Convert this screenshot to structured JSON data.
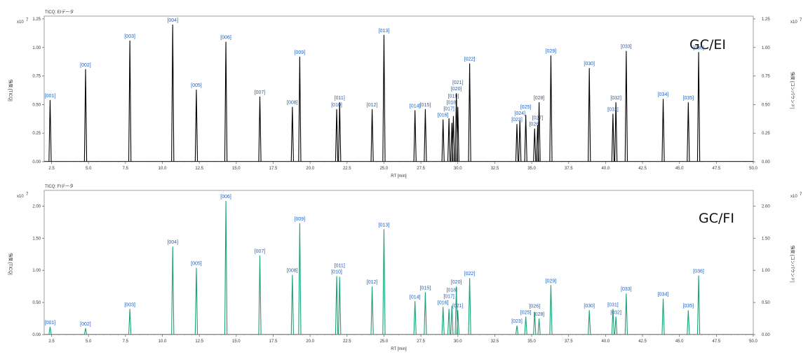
{
  "panels": [
    {
      "id": "ei",
      "title_label": "TICQ: EIデータ",
      "big_label": "GC/EI",
      "y_left_label": "強度 [TICQ]",
      "y_right_label": "強度 [コンパウンド]",
      "x_label": "RT [min]",
      "exponent": "x10",
      "exponent_sup": "7",
      "y_ticks": [
        "0.00",
        "0.25",
        "0.50",
        "0.75",
        "1.00",
        "1.25"
      ],
      "color": "#000000"
    },
    {
      "id": "fi",
      "title_label": "TICQ: FIデータ",
      "big_label": "GC/FI",
      "y_left_label": "強度 [TICQ]",
      "y_right_label": "強度 [コンパウンド]",
      "x_label": "RT [min]",
      "exponent": "x10",
      "exponent_sup": "7",
      "y_ticks": [
        "0.00",
        "0.50",
        "1.00",
        "1.50",
        "2.00"
      ],
      "color": "#1aa37a"
    }
  ],
  "x_ticks": [
    "2.5",
    "5.0",
    "7.5",
    "10.0",
    "12.5",
    "15.0",
    "17.5",
    "20.0",
    "22.5",
    "25.0",
    "27.5",
    "30.0",
    "32.5",
    "35.0",
    "37.5",
    "40.0",
    "42.5",
    "45.0",
    "47.5",
    "50.0"
  ],
  "chart_data": [
    {
      "type": "line",
      "title": "TICQ: EIデータ",
      "xlabel": "RT [min]",
      "ylabel": "強度 [TICQ]",
      "y_unit_multiplier": "x10^7",
      "xlim": [
        2.0,
        50.0
      ],
      "ylim": [
        0,
        1.25
      ],
      "line_color": "#000000",
      "peaks": [
        {
          "label": "[001]",
          "rt": 2.4,
          "h": 0.54
        },
        {
          "label": "[002]",
          "rt": 4.8,
          "h": 0.81
        },
        {
          "label": "[003]",
          "rt": 7.8,
          "h": 1.06
        },
        {
          "label": "[004]",
          "rt": 10.7,
          "h": 1.2
        },
        {
          "label": "[005]",
          "rt": 12.3,
          "h": 0.63
        },
        {
          "label": "[006]",
          "rt": 14.3,
          "h": 1.05
        },
        {
          "label": "[007]",
          "rt": 16.6,
          "h": 0.57
        },
        {
          "label": "[008]",
          "rt": 18.8,
          "h": 0.48
        },
        {
          "label": "[009]",
          "rt": 19.3,
          "h": 0.92
        },
        {
          "label": "[010]",
          "rt": 21.8,
          "h": 0.46
        },
        {
          "label": "[011]",
          "rt": 22.0,
          "h": 0.52
        },
        {
          "label": "[012]",
          "rt": 24.2,
          "h": 0.46
        },
        {
          "label": "[013]",
          "rt": 25.0,
          "h": 1.11
        },
        {
          "label": "[014]",
          "rt": 27.1,
          "h": 0.45
        },
        {
          "label": "[015]",
          "rt": 27.8,
          "h": 0.46
        },
        {
          "label": "[016]",
          "rt": 29.0,
          "h": 0.37
        },
        {
          "label": "[017]",
          "rt": 29.4,
          "h": 0.38
        },
        {
          "label": "[018]",
          "rt": 29.6,
          "h": 0.34
        },
        {
          "label": "[019]",
          "rt": 29.7,
          "h": 0.4
        },
        {
          "label": "[020]",
          "rt": 29.9,
          "h": 0.6
        },
        {
          "label": "[021]",
          "rt": 30.0,
          "h": 0.48
        },
        {
          "label": "[022]",
          "rt": 30.8,
          "h": 0.86
        },
        {
          "label": "[023]",
          "rt": 34.0,
          "h": 0.33
        },
        {
          "label": "[024]",
          "rt": 34.2,
          "h": 0.36
        },
        {
          "label": "[025]",
          "rt": 34.6,
          "h": 0.41
        },
        {
          "label": "[026]",
          "rt": 35.2,
          "h": 0.29
        },
        {
          "label": "[027]",
          "rt": 35.4,
          "h": 0.32
        },
        {
          "label": "[028]",
          "rt": 35.5,
          "h": 0.52
        },
        {
          "label": "[029]",
          "rt": 36.3,
          "h": 0.93
        },
        {
          "label": "[030]",
          "rt": 38.9,
          "h": 0.82
        },
        {
          "label": "[031]",
          "rt": 40.5,
          "h": 0.42
        },
        {
          "label": "[032]",
          "rt": 40.7,
          "h": 0.52
        },
        {
          "label": "[033]",
          "rt": 41.4,
          "h": 0.97
        },
        {
          "label": "[034]",
          "rt": 43.9,
          "h": 0.55
        },
        {
          "label": "[035]",
          "rt": 45.6,
          "h": 0.52
        },
        {
          "label": "[036]",
          "rt": 46.3,
          "h": 0.96
        }
      ]
    },
    {
      "type": "line",
      "title": "TICQ: FIデータ",
      "xlabel": "RT [min]",
      "ylabel": "強度 [TICQ]",
      "y_unit_multiplier": "x10^7",
      "xlim": [
        2.0,
        50.0
      ],
      "ylim": [
        0,
        2.2
      ],
      "line_color": "#1aa37a",
      "peaks": [
        {
          "label": "[001]",
          "rt": 2.4,
          "h": 0.12
        },
        {
          "label": "[002]",
          "rt": 4.8,
          "h": 0.1
        },
        {
          "label": "[003]",
          "rt": 7.8,
          "h": 0.4
        },
        {
          "label": "[004]",
          "rt": 10.7,
          "h": 1.37
        },
        {
          "label": "[005]",
          "rt": 12.3,
          "h": 1.04
        },
        {
          "label": "[006]",
          "rt": 14.3,
          "h": 2.08
        },
        {
          "label": "[007]",
          "rt": 16.6,
          "h": 1.23
        },
        {
          "label": "[008]",
          "rt": 18.8,
          "h": 0.93
        },
        {
          "label": "[009]",
          "rt": 19.3,
          "h": 1.73
        },
        {
          "label": "[010]",
          "rt": 21.8,
          "h": 0.91
        },
        {
          "label": "[011]",
          "rt": 22.0,
          "h": 0.9
        },
        {
          "label": "[012]",
          "rt": 24.2,
          "h": 0.75
        },
        {
          "label": "[013]",
          "rt": 25.0,
          "h": 1.64
        },
        {
          "label": "[014]",
          "rt": 27.1,
          "h": 0.52
        },
        {
          "label": "[015]",
          "rt": 27.8,
          "h": 0.66
        },
        {
          "label": "[016]",
          "rt": 29.0,
          "h": 0.43
        },
        {
          "label": "[017]",
          "rt": 29.4,
          "h": 0.4
        },
        {
          "label": "[018]",
          "rt": 29.6,
          "h": 0.45
        },
        {
          "label": "[020]",
          "rt": 29.9,
          "h": 0.75
        },
        {
          "label": "[021]",
          "rt": 30.0,
          "h": 0.38
        },
        {
          "label": "[022]",
          "rt": 30.8,
          "h": 0.88
        },
        {
          "label": "[023]",
          "rt": 34.0,
          "h": 0.14
        },
        {
          "label": "[025]",
          "rt": 34.6,
          "h": 0.28
        },
        {
          "label": "[026]",
          "rt": 35.2,
          "h": 0.35
        },
        {
          "label": "[028]",
          "rt": 35.5,
          "h": 0.25
        },
        {
          "label": "[029]",
          "rt": 36.3,
          "h": 0.77
        },
        {
          "label": "[030]",
          "rt": 38.9,
          "h": 0.38
        },
        {
          "label": "[031]",
          "rt": 40.5,
          "h": 0.4
        },
        {
          "label": "[032]",
          "rt": 40.7,
          "h": 0.28
        },
        {
          "label": "[033]",
          "rt": 41.4,
          "h": 0.64
        },
        {
          "label": "[034]",
          "rt": 43.9,
          "h": 0.56
        },
        {
          "label": "[035]",
          "rt": 45.6,
          "h": 0.38
        },
        {
          "label": "[036]",
          "rt": 46.3,
          "h": 0.92
        }
      ]
    }
  ]
}
